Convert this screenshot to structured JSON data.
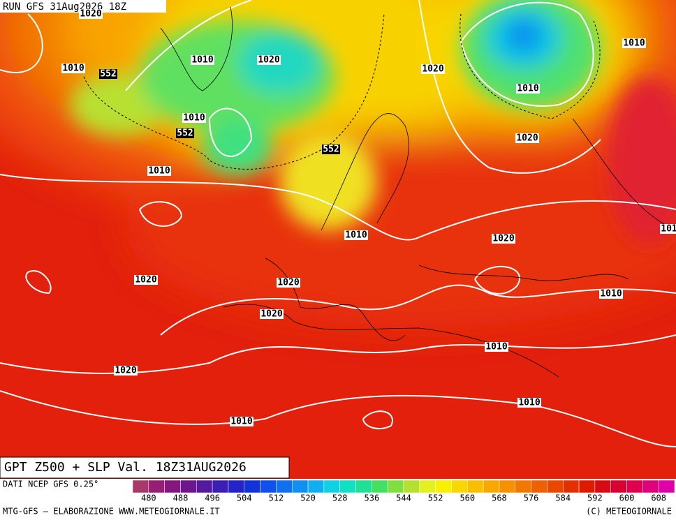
{
  "header": {
    "run": "RUN GFS 31Aug2026 18Z"
  },
  "isobar_labels": [
    "1020",
    "1010",
    "552",
    "1010",
    "1020",
    "1010",
    "552",
    "552",
    "1010",
    "1020",
    "1010",
    "1010",
    "1020",
    "1010",
    "1020",
    "101",
    "1020",
    "1020",
    "1010",
    "1020",
    "1010",
    "1020",
    "1010",
    "1010"
  ],
  "footer": {
    "title": "GPT Z500 + SLP Val. 18Z31AUG2026",
    "source": "DATI NCEP GFS 0.25°",
    "credits": "MTG-GFS — ELABORAZIONE WWW.METEOGIORNALE.IT",
    "copyright": "(C) METEOGIORNALE"
  },
  "legend": {
    "colors": [
      "#a8386a",
      "#961e74",
      "#84187e",
      "#6e168c",
      "#561a9e",
      "#3c1eb4",
      "#2424c8",
      "#1432dc",
      "#1050ec",
      "#1070f0",
      "#1090f0",
      "#10b0f0",
      "#10d0e4",
      "#10e0c4",
      "#20e098",
      "#44e064",
      "#80e040",
      "#b4e030",
      "#e4f020",
      "#f8f000",
      "#f8d800",
      "#f8c000",
      "#f8a800",
      "#f89000",
      "#f27800",
      "#ee6000",
      "#e84800",
      "#e23000",
      "#e01a00",
      "#d80a14",
      "#d80032",
      "#e00050",
      "#e0007a",
      "#e000a8"
    ],
    "ticks": [
      "480",
      "488",
      "496",
      "504",
      "512",
      "520",
      "528",
      "536",
      "544",
      "552",
      "560",
      "568",
      "576",
      "584",
      "592",
      "600",
      "608"
    ]
  }
}
